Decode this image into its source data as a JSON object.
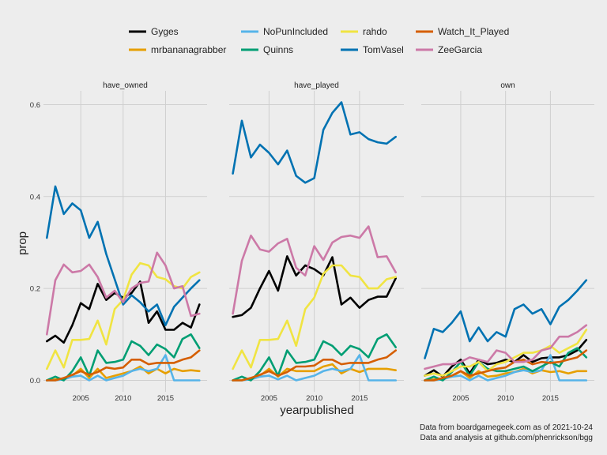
{
  "chart_data": {
    "type": "line",
    "xlabel": "yearpublished",
    "ylabel": "prop",
    "x_ticks": [
      2005,
      2010,
      2015
    ],
    "y_ticks": [
      "0.0",
      "0.2",
      "0.4",
      "0.6"
    ],
    "y_tick_values": [
      0,
      0.2,
      0.4,
      0.6
    ],
    "xlim": [
      2000.6,
      2019.9
    ],
    "ylim": [
      -0.025,
      0.63
    ],
    "grid": true,
    "legend_position": "top",
    "caption": [
      "Data from boardgamegeek.com as of 2021-10-24",
      "Data and analysis at github.com/phenrickson/bgg"
    ],
    "years": [
      2001,
      2002,
      2003,
      2004,
      2005,
      2006,
      2007,
      2008,
      2009,
      2010,
      2011,
      2012,
      2013,
      2014,
      2015,
      2016,
      2017,
      2018,
      2019
    ],
    "series_names": [
      "Gyges",
      "mrbananagrabber",
      "NoPunIncluded",
      "Quinns",
      "rahdo",
      "TomVasel",
      "Watch_It_Played",
      "ZeeGarcia"
    ],
    "legend_order": [
      "Gyges",
      "NoPunIncluded",
      "rahdo",
      "Watch_It_Played",
      "mrbananagrabber",
      "Quinns",
      "TomVasel",
      "ZeeGarcia"
    ],
    "colors": {
      "Gyges": "#000000",
      "mrbananagrabber": "#e69f00",
      "NoPunIncluded": "#56b4e9",
      "Quinns": "#009e73",
      "rahdo": "#f0e442",
      "TomVasel": "#0072b2",
      "Watch_It_Played": "#d55e00",
      "ZeeGarcia": "#cc79a7"
    },
    "panels": [
      {
        "title": "have_owned",
        "series": [
          {
            "name": "Gyges",
            "values": [
              0.085,
              0.097,
              0.082,
              0.12,
              0.168,
              0.155,
              0.21,
              0.175,
              0.19,
              0.18,
              0.19,
              0.215,
              0.125,
              0.15,
              0.11,
              0.11,
              0.125,
              0.115,
              0.165
            ]
          },
          {
            "name": "mrbananagrabber",
            "values": [
              0.0,
              0.002,
              0.004,
              0.01,
              0.025,
              0.005,
              0.025,
              0.005,
              0.01,
              0.015,
              0.02,
              0.03,
              0.015,
              0.025,
              0.015,
              0.025,
              0.02,
              0.022,
              0.02
            ]
          },
          {
            "name": "NoPunIncluded",
            "values": [
              0.0,
              0.0,
              0.002,
              0.008,
              0.01,
              0.0,
              0.01,
              0.0,
              0.005,
              0.01,
              0.02,
              0.025,
              0.02,
              0.025,
              0.055,
              0.0,
              0.0,
              0.0,
              0.0
            ]
          },
          {
            "name": "Quinns",
            "values": [
              0.0,
              0.008,
              0.0,
              0.02,
              0.05,
              0.01,
              0.065,
              0.038,
              0.04,
              0.045,
              0.085,
              0.075,
              0.055,
              0.078,
              0.068,
              0.05,
              0.09,
              0.1,
              0.07
            ]
          },
          {
            "name": "rahdo",
            "values": [
              0.025,
              0.065,
              0.028,
              0.088,
              0.088,
              0.09,
              0.13,
              0.078,
              0.155,
              0.175,
              0.23,
              0.255,
              0.25,
              0.225,
              0.22,
              0.205,
              0.2,
              0.225,
              0.235
            ]
          },
          {
            "name": "TomVasel",
            "values": [
              0.31,
              0.422,
              0.362,
              0.385,
              0.37,
              0.31,
              0.345,
              0.275,
              0.22,
              0.165,
              0.185,
              0.17,
              0.15,
              0.165,
              0.12,
              0.16,
              0.18,
              0.2,
              0.218
            ]
          },
          {
            "name": "Watch_It_Played",
            "values": [
              0.0,
              0.0,
              0.005,
              0.012,
              0.02,
              0.012,
              0.018,
              0.028,
              0.025,
              0.028,
              0.045,
              0.045,
              0.035,
              0.038,
              0.038,
              0.038,
              0.045,
              0.05,
              0.065
            ]
          },
          {
            "name": "ZeeGarcia",
            "values": [
              0.1,
              0.218,
              0.252,
              0.235,
              0.238,
              0.252,
              0.225,
              0.18,
              0.195,
              0.17,
              0.2,
              0.212,
              0.215,
              0.278,
              0.25,
              0.2,
              0.205,
              0.14,
              0.145
            ]
          }
        ]
      },
      {
        "title": "have_played",
        "series": [
          {
            "name": "Gyges",
            "values": [
              0.138,
              0.142,
              0.158,
              0.2,
              0.238,
              0.195,
              0.27,
              0.228,
              0.25,
              0.242,
              0.228,
              0.268,
              0.165,
              0.18,
              0.158,
              0.175,
              0.182,
              0.182,
              0.222
            ]
          },
          {
            "name": "mrbananagrabber",
            "values": [
              0.0,
              0.0,
              0.005,
              0.01,
              0.025,
              0.008,
              0.025,
              0.02,
              0.02,
              0.02,
              0.03,
              0.035,
              0.015,
              0.025,
              0.018,
              0.025,
              0.025,
              0.025,
              0.022
            ]
          },
          {
            "name": "NoPunIncluded",
            "values": [
              0.0,
              0.0,
              0.002,
              0.008,
              0.01,
              0.002,
              0.01,
              0.0,
              0.005,
              0.01,
              0.02,
              0.025,
              0.02,
              0.025,
              0.055,
              0.0,
              0.0,
              0.0,
              0.0
            ]
          },
          {
            "name": "Quinns",
            "values": [
              0.0,
              0.008,
              0.0,
              0.02,
              0.05,
              0.01,
              0.065,
              0.038,
              0.04,
              0.045,
              0.085,
              0.075,
              0.055,
              0.075,
              0.068,
              0.05,
              0.09,
              0.1,
              0.072
            ]
          },
          {
            "name": "rahdo",
            "values": [
              0.025,
              0.065,
              0.028,
              0.088,
              0.088,
              0.09,
              0.13,
              0.075,
              0.155,
              0.18,
              0.232,
              0.25,
              0.25,
              0.228,
              0.225,
              0.2,
              0.2,
              0.22,
              0.225
            ]
          },
          {
            "name": "TomVasel",
            "values": [
              0.45,
              0.565,
              0.485,
              0.513,
              0.495,
              0.47,
              0.5,
              0.445,
              0.43,
              0.44,
              0.545,
              0.582,
              0.605,
              0.535,
              0.54,
              0.525,
              0.518,
              0.515,
              0.53
            ]
          },
          {
            "name": "Watch_It_Played",
            "values": [
              0.0,
              0.0,
              0.005,
              0.012,
              0.02,
              0.01,
              0.018,
              0.03,
              0.03,
              0.032,
              0.045,
              0.045,
              0.035,
              0.038,
              0.038,
              0.038,
              0.045,
              0.05,
              0.065
            ]
          },
          {
            "name": "ZeeGarcia",
            "values": [
              0.145,
              0.26,
              0.315,
              0.285,
              0.28,
              0.298,
              0.308,
              0.245,
              0.228,
              0.292,
              0.262,
              0.3,
              0.312,
              0.315,
              0.31,
              0.335,
              0.268,
              0.27,
              0.235
            ]
          }
        ]
      },
      {
        "title": "own",
        "series": [
          {
            "name": "Gyges",
            "values": [
              0.01,
              0.022,
              0.008,
              0.03,
              0.045,
              0.015,
              0.045,
              0.035,
              0.038,
              0.045,
              0.04,
              0.055,
              0.04,
              0.048,
              0.05,
              0.05,
              0.055,
              0.065,
              0.088
            ]
          },
          {
            "name": "mrbananagrabber",
            "values": [
              0.0,
              0.002,
              0.004,
              0.008,
              0.02,
              0.005,
              0.02,
              0.008,
              0.01,
              0.015,
              0.018,
              0.025,
              0.015,
              0.022,
              0.018,
              0.02,
              0.015,
              0.02,
              0.02
            ]
          },
          {
            "name": "NoPunIncluded",
            "values": [
              0.0,
              0.0,
              0.002,
              0.008,
              0.01,
              0.0,
              0.01,
              0.0,
              0.005,
              0.01,
              0.018,
              0.022,
              0.018,
              0.022,
              0.055,
              0.0,
              0.0,
              0.0,
              0.0
            ]
          },
          {
            "name": "Quinns",
            "values": [
              0.0,
              0.008,
              0.0,
              0.018,
              0.04,
              0.01,
              0.04,
              0.025,
              0.02,
              0.02,
              0.025,
              0.03,
              0.02,
              0.03,
              0.04,
              0.03,
              0.06,
              0.07,
              0.05
            ]
          },
          {
            "name": "rahdo",
            "values": [
              0.01,
              0.015,
              0.01,
              0.02,
              0.03,
              0.03,
              0.04,
              0.02,
              0.035,
              0.04,
              0.05,
              0.06,
              0.06,
              0.065,
              0.075,
              0.06,
              0.07,
              0.08,
              0.11
            ]
          },
          {
            "name": "TomVasel",
            "values": [
              0.048,
              0.112,
              0.105,
              0.125,
              0.15,
              0.085,
              0.115,
              0.085,
              0.105,
              0.095,
              0.155,
              0.165,
              0.145,
              0.155,
              0.122,
              0.16,
              0.175,
              0.195,
              0.218
            ]
          },
          {
            "name": "Watch_It_Played",
            "values": [
              0.0,
              0.0,
              0.005,
              0.01,
              0.02,
              0.01,
              0.015,
              0.02,
              0.025,
              0.028,
              0.04,
              0.045,
              0.035,
              0.04,
              0.038,
              0.04,
              0.045,
              0.05,
              0.065
            ]
          },
          {
            "name": "ZeeGarcia",
            "values": [
              0.025,
              0.03,
              0.035,
              0.035,
              0.04,
              0.05,
              0.045,
              0.04,
              0.065,
              0.06,
              0.04,
              0.04,
              0.045,
              0.065,
              0.07,
              0.095,
              0.095,
              0.105,
              0.12
            ]
          }
        ]
      }
    ]
  }
}
